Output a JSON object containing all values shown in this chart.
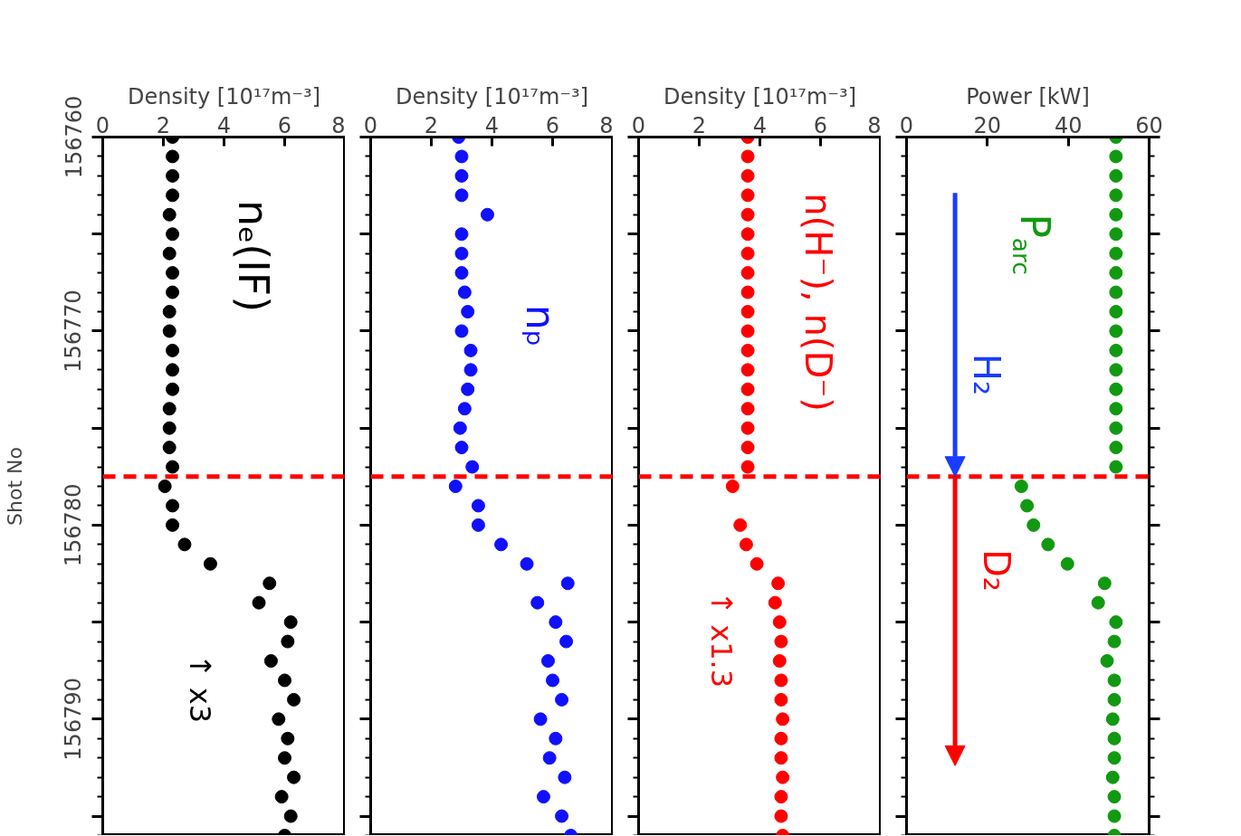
{
  "chart_data": [
    {
      "type": "scatter",
      "xlabel": "Density [10¹⁷m⁻³]",
      "ylabel": "Shot No",
      "xlim": [
        0,
        8
      ],
      "xticks": [
        0,
        2,
        4,
        6,
        8
      ],
      "ylim": [
        156796,
        156760
      ],
      "yticks": [
        156760,
        {
          "value": 156765,
          "label": null
        },
        156770,
        {
          "value": 156775,
          "label": null
        },
        156780,
        {
          "value": 156785,
          "label": null
        },
        156790,
        {
          "value": 156795,
          "label": null
        }
      ],
      "marker": "circle",
      "grid": false,
      "series": [
        {
          "name": "nₑ(IF)",
          "color": "#000000",
          "x": [
            2.3,
            2.3,
            2.3,
            2.3,
            2.2,
            2.3,
            2.2,
            2.3,
            2.3,
            2.2,
            2.2,
            2.3,
            2.3,
            2.3,
            2.2,
            2.2,
            2.2,
            2.3,
            2.05,
            2.3,
            2.3,
            2.7,
            3.55,
            5.5,
            5.15,
            6.2,
            6.1,
            5.55,
            6.0,
            6.3,
            5.8,
            6.1,
            6.0,
            6.3,
            5.9,
            6.2,
            6.0
          ],
          "values": [
            156760,
            156761,
            156762,
            156763,
            156764,
            156765,
            156766,
            156767,
            156768,
            156769,
            156770,
            156771,
            156772,
            156773,
            156774,
            156775,
            156776,
            156777,
            156778,
            156779,
            156780,
            156781,
            156782,
            156783,
            156784,
            156785,
            156786,
            156787,
            156788,
            156789,
            156790,
            156791,
            156792,
            156793,
            156794,
            156795,
            156796
          ]
        }
      ],
      "ref_lines": [
        {
          "axis": "y",
          "value": 156777.5,
          "color": "#ff0000",
          "line_style": "dashed"
        }
      ],
      "annotations": [
        "↑ x3"
      ]
    },
    {
      "type": "scatter",
      "xlabel": "Density [10¹⁷m⁻³]",
      "xlim": [
        0,
        8
      ],
      "xticks": [
        0,
        2,
        4,
        6,
        8
      ],
      "ylim": [
        156796,
        156760
      ],
      "yticks": [
        156760,
        {
          "value": 156765,
          "label": null
        },
        156770,
        {
          "value": 156775,
          "label": null
        },
        156780,
        {
          "value": 156785,
          "label": null
        },
        156790,
        {
          "value": 156795,
          "label": null
        }
      ],
      "marker": "circle",
      "grid": false,
      "tick_labels": "x",
      "series": [
        {
          "name": "nₚ",
          "color": "#1010ff",
          "x": [
            2.9,
            3.0,
            3.0,
            3.0,
            3.85,
            3.0,
            3.0,
            3.0,
            3.1,
            3.2,
            3.0,
            3.3,
            3.3,
            3.2,
            3.1,
            2.95,
            3.0,
            3.35,
            2.8,
            3.55,
            3.55,
            4.3,
            5.15,
            6.5,
            5.5,
            6.1,
            6.45,
            5.85,
            6.0,
            6.3,
            5.6,
            6.1,
            5.9,
            6.4,
            5.7,
            6.3,
            6.6
          ],
          "values": [
            156760,
            156761,
            156762,
            156763,
            156764,
            156765,
            156766,
            156767,
            156768,
            156769,
            156770,
            156771,
            156772,
            156773,
            156774,
            156775,
            156776,
            156777,
            156778,
            156779,
            156780,
            156781,
            156782,
            156783,
            156784,
            156785,
            156786,
            156787,
            156788,
            156789,
            156790,
            156791,
            156792,
            156793,
            156794,
            156795,
            156796
          ]
        }
      ],
      "ref_lines": [
        {
          "axis": "y",
          "value": 156777.5,
          "color": "#ff0000",
          "line_style": "dashed"
        }
      ]
    },
    {
      "type": "scatter",
      "xlabel": "Density [10¹⁷m⁻³]",
      "xlim": [
        0,
        8
      ],
      "xticks": [
        0,
        2,
        4,
        6,
        8
      ],
      "ylim": [
        156796,
        156760
      ],
      "yticks": [
        156760,
        {
          "value": 156765,
          "label": null
        },
        156770,
        {
          "value": 156775,
          "label": null
        },
        156780,
        {
          "value": 156785,
          "label": null
        },
        156790,
        {
          "value": 156795,
          "label": null
        }
      ],
      "marker": "circle",
      "grid": false,
      "tick_labels": "x",
      "series": [
        {
          "name": "n(H⁻), n(D⁻)",
          "color": "#ff0000",
          "x": [
            3.6,
            3.6,
            3.6,
            3.6,
            3.6,
            3.6,
            3.6,
            3.6,
            3.6,
            3.6,
            3.6,
            3.6,
            3.6,
            3.6,
            3.6,
            3.6,
            3.6,
            3.6,
            3.1,
            3.35,
            3.55,
            3.9,
            4.6,
            4.5,
            4.65,
            4.7,
            4.65,
            4.7,
            4.7,
            4.75,
            4.7,
            4.7,
            4.75,
            4.7,
            4.7,
            4.75
          ],
          "values": [
            156760,
            156761,
            156762,
            156763,
            156764,
            156765,
            156766,
            156767,
            156768,
            156769,
            156770,
            156771,
            156772,
            156773,
            156774,
            156775,
            156776,
            156777,
            156778,
            156780,
            156781,
            156782,
            156783,
            156784,
            156785,
            156786,
            156787,
            156788,
            156789,
            156790,
            156791,
            156792,
            156793,
            156794,
            156795,
            156796
          ]
        }
      ],
      "ref_lines": [
        {
          "axis": "y",
          "value": 156777.5,
          "color": "#ff0000",
          "line_style": "dashed"
        }
      ],
      "annotations": [
        "↑ x1.3"
      ]
    },
    {
      "type": "scatter",
      "xlabel": "Power [kW]",
      "xlim": [
        0,
        60
      ],
      "xticks": [
        0,
        20,
        40,
        60
      ],
      "ylim": [
        156796,
        156760
      ],
      "yticks": [
        156760,
        {
          "value": 156765,
          "label": null
        },
        156770,
        {
          "value": 156775,
          "label": null
        },
        156780,
        {
          "value": 156785,
          "label": null
        },
        156790,
        {
          "value": 156795,
          "label": null
        }
      ],
      "marker": "circle",
      "grid": false,
      "tick_labels": "x",
      "series": [
        {
          "name": "P$_{arc}$",
          "color": "#119911",
          "x": [
            51.8,
            51.8,
            51.8,
            51.8,
            51.8,
            51.8,
            51.8,
            51.8,
            51.8,
            51.8,
            51.8,
            51.8,
            51.8,
            51.8,
            51.8,
            51.8,
            51.8,
            51.8,
            28.4,
            29.8,
            31.4,
            35,
            39.8,
            49,
            47.4,
            51.8,
            51.4,
            49.6,
            51.4,
            51.4,
            51.0,
            51.4,
            51.4,
            51.0,
            51.4,
            51.4,
            51.4
          ],
          "values": [
            156760,
            156761,
            156762,
            156763,
            156764,
            156765,
            156766,
            156767,
            156768,
            156769,
            156770,
            156771,
            156772,
            156773,
            156774,
            156775,
            156776,
            156777,
            156778,
            156779,
            156780,
            156781,
            156782,
            156783,
            156784,
            156785,
            156786,
            156787,
            156788,
            156789,
            156790,
            156791,
            156792,
            156793,
            156794,
            156795,
            156796
          ]
        }
      ],
      "ref_lines": [
        {
          "axis": "y",
          "value": 156777.5,
          "color": "#ff0000",
          "line_style": "dashed"
        }
      ],
      "annotations": [
        "H₂",
        "D₂"
      ]
    }
  ]
}
